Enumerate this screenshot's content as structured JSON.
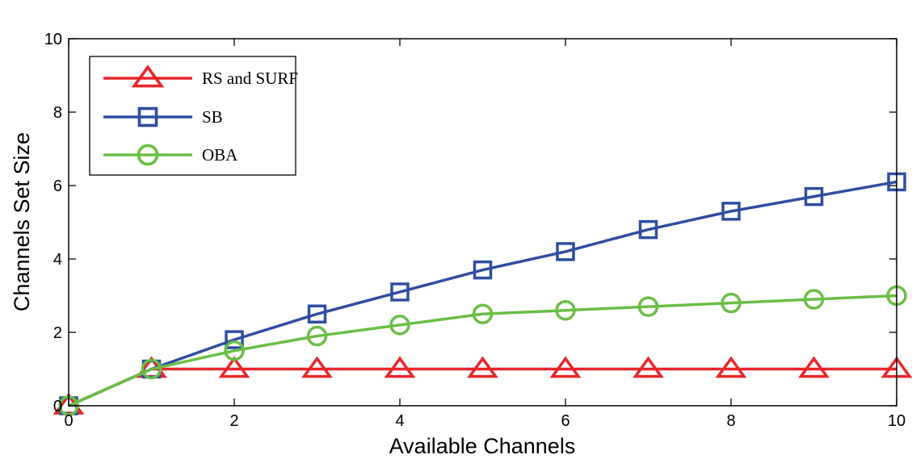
{
  "chart_data": {
    "type": "line",
    "title": "",
    "xlabel": "Available Channels",
    "ylabel": "Channels Set Size",
    "xlim": [
      0,
      10
    ],
    "ylim": [
      0,
      10
    ],
    "xticks": [
      "0",
      "2",
      "4",
      "6",
      "8",
      "10"
    ],
    "yticks": [
      "0",
      "2",
      "4",
      "6",
      "8",
      "10"
    ],
    "grid": false,
    "legend_position": "top-left",
    "x": [
      0,
      1,
      2,
      3,
      4,
      5,
      6,
      7,
      8,
      9,
      10
    ],
    "series": [
      {
        "name": "RS and SURF",
        "color": "#e8262b",
        "marker": "triangle",
        "values": [
          0,
          1,
          1,
          1,
          1,
          1,
          1,
          1,
          1,
          1,
          1
        ]
      },
      {
        "name": "SB",
        "color": "#2f4ea1",
        "marker": "square",
        "values": [
          0,
          1,
          1.8,
          2.5,
          3.1,
          3.7,
          4.2,
          4.8,
          5.3,
          5.7,
          6.1
        ]
      },
      {
        "name": "OBA",
        "color": "#6abe45",
        "marker": "circle",
        "values": [
          0,
          1,
          1.5,
          1.9,
          2.2,
          2.5,
          2.6,
          2.7,
          2.8,
          2.9,
          3.0
        ]
      }
    ]
  }
}
